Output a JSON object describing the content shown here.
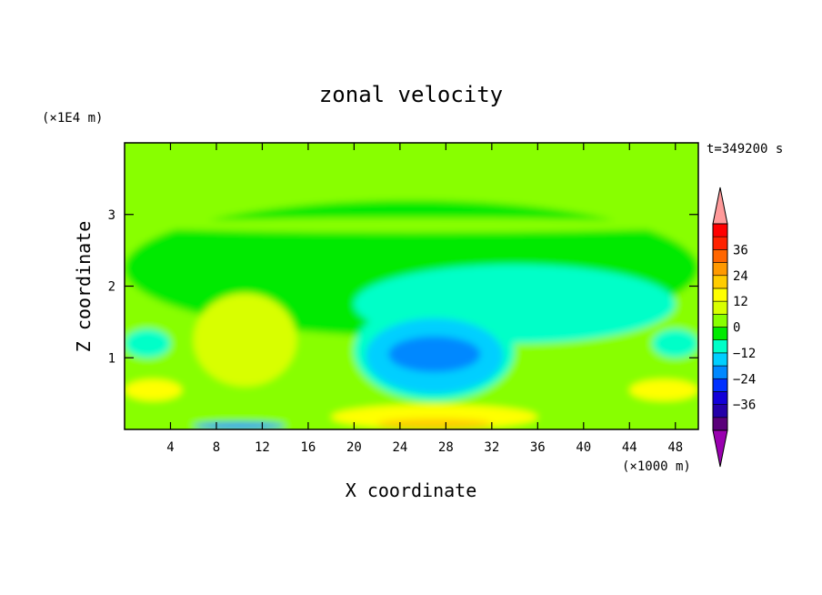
{
  "chart_data": {
    "type": "heatmap",
    "title": "zonal velocity",
    "xlabel": "X coordinate",
    "ylabel": "Z coordinate",
    "x_unit_label": "(×1000 m)",
    "y_unit_label": "(×1E4 m)",
    "time_label": "t=349200 s",
    "xlim": [
      0,
      50
    ],
    "ylim": [
      0,
      4
    ],
    "x_ticks": [
      "4",
      "8",
      "12",
      "16",
      "20",
      "24",
      "28",
      "32",
      "36",
      "40",
      "44",
      "48"
    ],
    "y_ticks": [
      "1",
      "2",
      "3"
    ],
    "colorbar": {
      "tick_labels": [
        "36",
        "24",
        "12",
        "0",
        "−12",
        "−24",
        "−36"
      ],
      "levels": [
        -42,
        -36,
        -30,
        -24,
        -18,
        -12,
        -6,
        0,
        6,
        12,
        18,
        24,
        30,
        36,
        42
      ],
      "colors": [
        "#5a007a",
        "#2400a8",
        "#1200d8",
        "#0030ff",
        "#0088ff",
        "#00cfff",
        "#00ffc8",
        "#00ea00",
        "#88ff00",
        "#d8ff00",
        "#ffff00",
        "#ffcc00",
        "#ff9900",
        "#ff6600",
        "#ff2200",
        "#ff0000"
      ],
      "under_color": "#9a00b0",
      "over_color": "#ff9a9a"
    },
    "field_regions": [
      {
        "x": [
          0,
          50
        ],
        "z": [
          0,
          4
        ],
        "value": 2
      },
      {
        "x": [
          0,
          50
        ],
        "z": [
          3.25,
          3.95
        ],
        "value": 5
      },
      {
        "x": [
          0,
          50
        ],
        "z": [
          1.3,
          3.2
        ],
        "value": -3
      },
      {
        "x": [
          0,
          50
        ],
        "z": [
          2.75,
          2.95
        ],
        "value": 3
      },
      {
        "x": [
          20,
          48
        ],
        "z": [
          1.2,
          2.3
        ],
        "value": -7
      },
      {
        "x": [
          20,
          34
        ],
        "z": [
          0.4,
          1.8
        ],
        "value": -10
      },
      {
        "x": [
          21,
          33
        ],
        "z": [
          0.5,
          1.55
        ],
        "value": -14
      },
      {
        "x": [
          23,
          31
        ],
        "z": [
          0.8,
          1.3
        ],
        "value": -20
      },
      {
        "x": [
          6,
          15
        ],
        "z": [
          0.6,
          1.9
        ],
        "value": 7
      },
      {
        "x": [
          8,
          13
        ],
        "z": [
          0.9,
          1.4
        ],
        "value": 10
      },
      {
        "x": [
          0,
          4
        ],
        "z": [
          1,
          1.4
        ],
        "value": -10
      },
      {
        "x": [
          46,
          50
        ],
        "z": [
          1,
          1.4
        ],
        "value": -10
      },
      {
        "x": [
          0,
          5
        ],
        "z": [
          0.4,
          0.7
        ],
        "value": 14
      },
      {
        "x": [
          44,
          50
        ],
        "z": [
          0.4,
          0.7
        ],
        "value": 12
      },
      {
        "x": [
          18,
          36
        ],
        "z": [
          0,
          0.35
        ],
        "value": 12
      },
      {
        "x": [
          22,
          32
        ],
        "z": [
          0,
          0.15
        ],
        "value": 22
      },
      {
        "x": [
          6,
          14
        ],
        "z": [
          0,
          0.1
        ],
        "value": -20
      }
    ]
  }
}
